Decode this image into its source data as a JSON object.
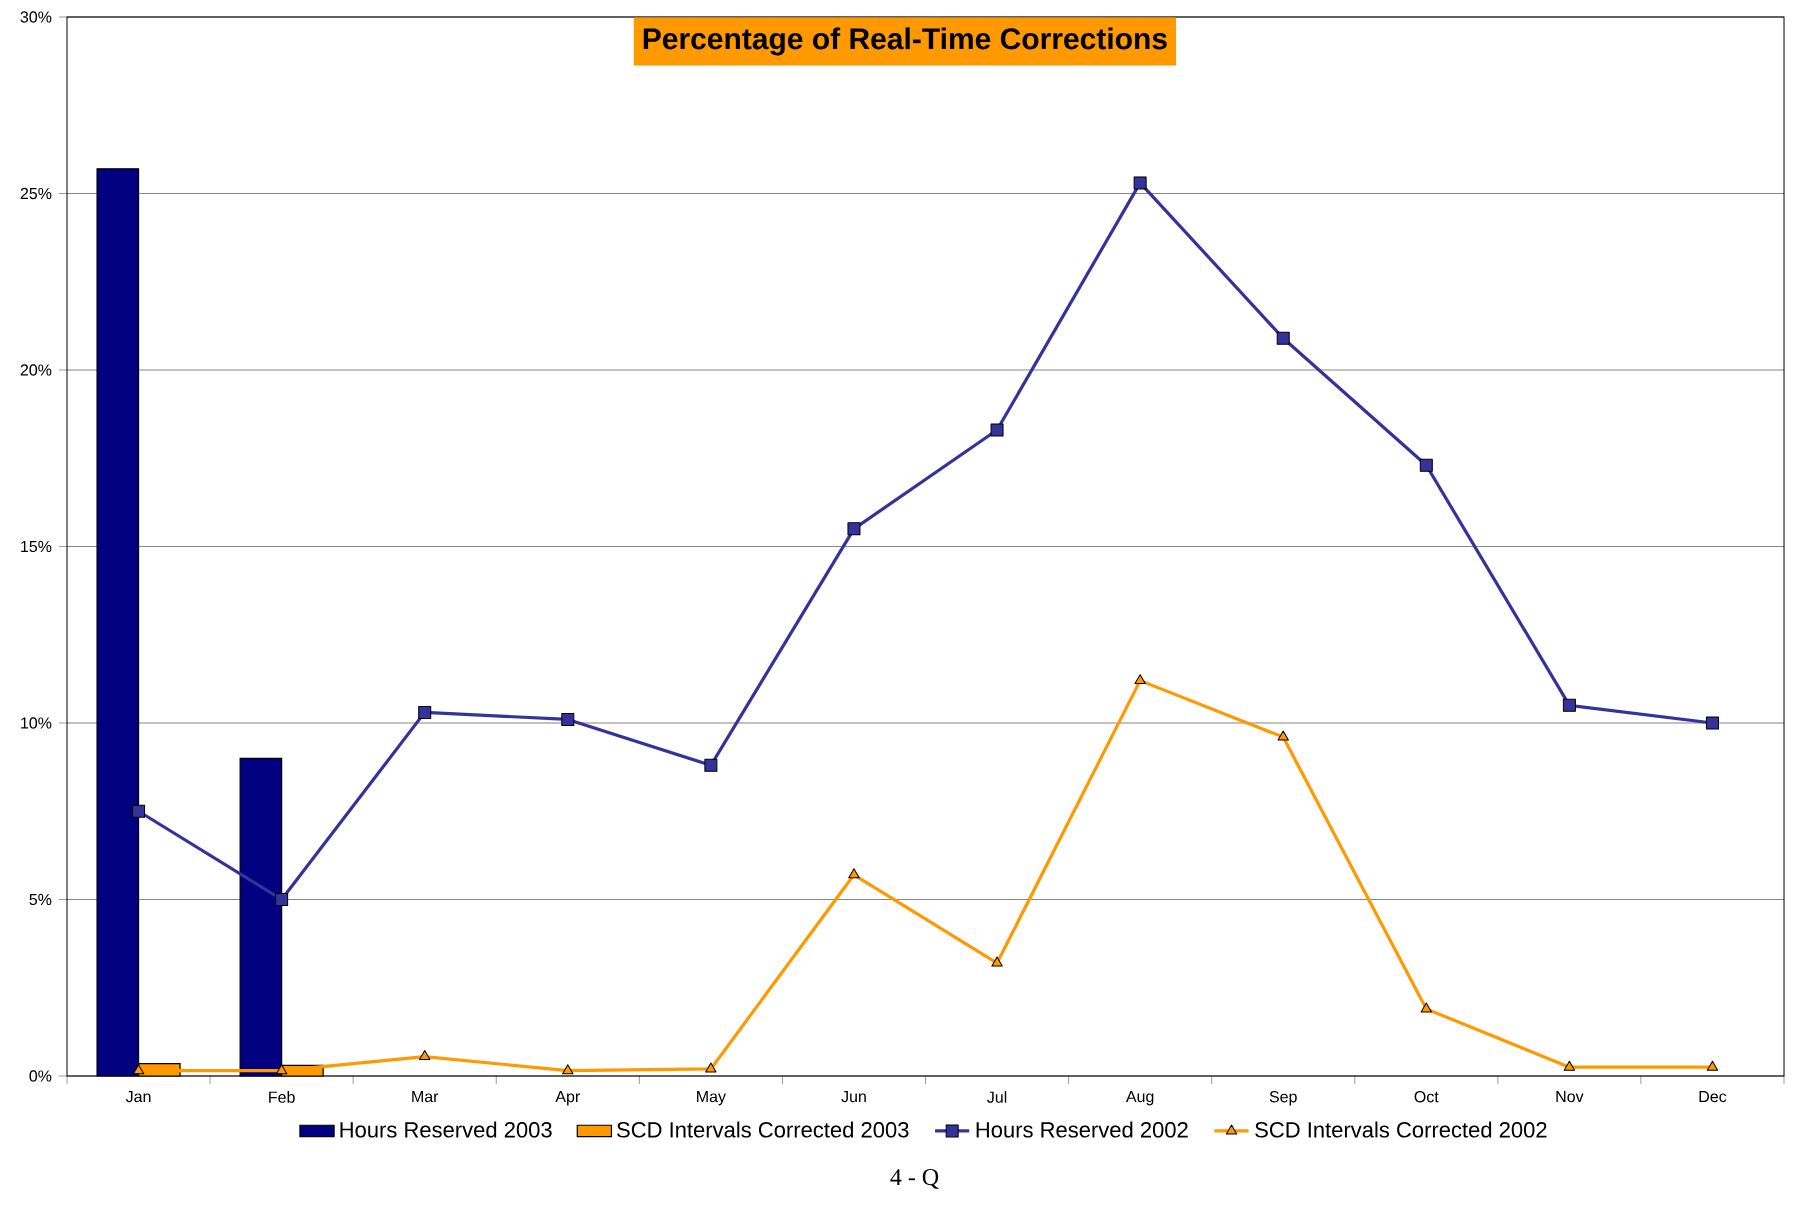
{
  "chart_data": {
    "type": "bar",
    "title": "Percentage of Real-Time Corrections",
    "categories": [
      "Jan",
      "Feb",
      "Mar",
      "Apr",
      "May",
      "Jun",
      "Jul",
      "Aug",
      "Sep",
      "Oct",
      "Nov",
      "Dec"
    ],
    "series": [
      {
        "name": "Hours Reserved 2003",
        "color": "#000080",
        "values": [
          25.7,
          9.0,
          null,
          null,
          null,
          null,
          null,
          null,
          null,
          null,
          null,
          null
        ]
      },
      {
        "name": "SCD Intervals Corrected 2003",
        "color": "#ff9900",
        "values": [
          0.35,
          0.3,
          null,
          null,
          null,
          null,
          null,
          null,
          null,
          null,
          null,
          null
        ]
      },
      {
        "name": "Hours Reserved 2002",
        "type": "line",
        "marker": "square",
        "color": "#333399",
        "values": [
          7.5,
          5.0,
          10.3,
          10.1,
          8.8,
          15.5,
          18.3,
          25.3,
          20.9,
          17.3,
          10.5,
          10.0
        ]
      },
      {
        "name": "SCD Intervals Corrected 2002",
        "type": "line",
        "marker": "triangle",
        "color": "#ff9900",
        "values": [
          0.15,
          0.15,
          0.55,
          0.15,
          0.2,
          5.7,
          3.2,
          11.2,
          9.6,
          1.9,
          0.25,
          0.25
        ]
      }
    ],
    "ylim": [
      0,
      30
    ],
    "yticks": [
      {
        "value": 0,
        "label": "0%"
      },
      {
        "value": 5,
        "label": "5%"
      },
      {
        "value": 10,
        "label": "10%"
      },
      {
        "value": 15,
        "label": "15%"
      },
      {
        "value": 20,
        "label": "20%"
      },
      {
        "value": 25,
        "label": "25%"
      },
      {
        "value": 30,
        "label": "30%"
      }
    ],
    "grid": "y",
    "legend": "bottom",
    "annotations": [
      "4 - Q"
    ]
  }
}
